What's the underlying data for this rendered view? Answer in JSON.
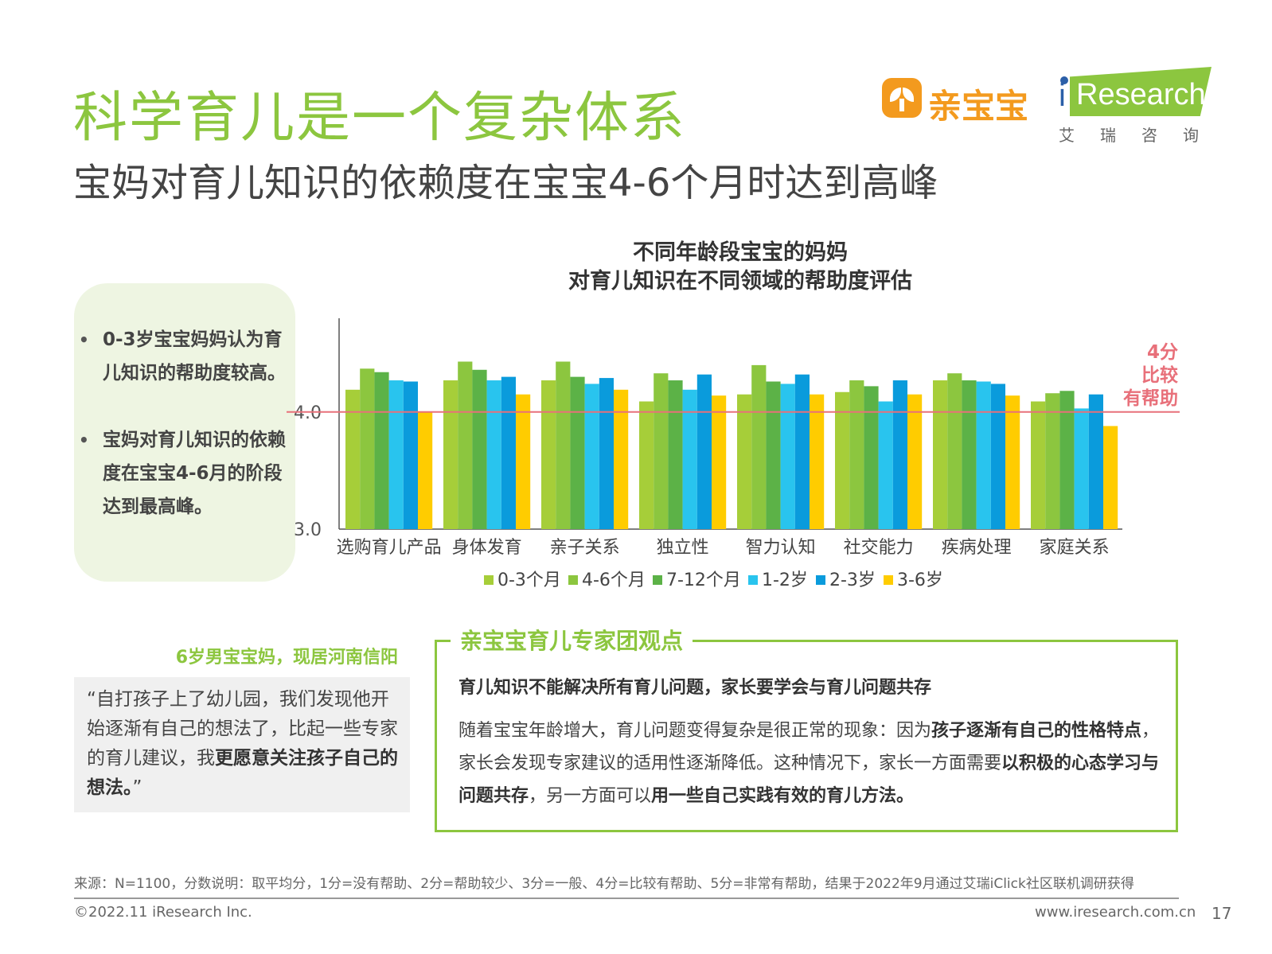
{
  "header": {
    "title": "科学育儿是一个复杂体系",
    "subtitle": "宝妈对育儿知识的依赖度在宝宝4-6个月时达到高峰"
  },
  "logos": {
    "qinbaobao": "亲宝宝",
    "iresearch_en": "Research",
    "iresearch_i": "i",
    "iresearch_cn": "艾瑞咨询"
  },
  "bullets": [
    "0-3岁宝宝妈妈认为育儿知识的帮助度较高。",
    "宝妈对育儿知识的依赖度在宝宝4-6月的阶段达到最高峰。"
  ],
  "chart_title_line1": "不同年龄段宝宝的妈妈",
  "chart_title_line2": "对育儿知识在不同领域的帮助度评估",
  "chart_data": {
    "type": "bar",
    "title": "不同年龄段宝宝的妈妈 对育儿知识在不同领域的帮助度评估",
    "categories": [
      "选购育儿产品",
      "身体发育",
      "亲子关系",
      "独立性",
      "智力认知",
      "社交能力",
      "疾病处理",
      "家庭关系"
    ],
    "series": [
      {
        "name": "0-3个月",
        "color": "#a6ce39",
        "values": [
          4.19,
          4.27,
          4.27,
          4.09,
          4.15,
          4.17,
          4.27,
          4.09
        ]
      },
      {
        "name": "4-6个月",
        "color": "#8cc63f",
        "values": [
          4.37,
          4.43,
          4.43,
          4.33,
          4.4,
          4.27,
          4.33,
          4.16
        ]
      },
      {
        "name": "7-12个月",
        "color": "#5cb247",
        "values": [
          4.34,
          4.36,
          4.3,
          4.27,
          4.26,
          4.22,
          4.27,
          4.18
        ]
      },
      {
        "name": "1-2岁",
        "color": "#29c4ee",
        "values": [
          4.27,
          4.27,
          4.24,
          4.19,
          4.24,
          4.09,
          4.26,
          4.03
        ]
      },
      {
        "name": "2-3岁",
        "color": "#0a9bdc",
        "values": [
          4.26,
          4.3,
          4.29,
          4.32,
          4.32,
          4.27,
          4.24,
          4.15
        ]
      },
      {
        "name": "3-6岁",
        "color": "#ffcc00",
        "values": [
          4.0,
          4.15,
          4.19,
          4.14,
          4.15,
          4.15,
          4.14,
          3.88
        ]
      }
    ],
    "ylim": [
      3.0,
      4.8
    ],
    "yticks": [
      "3.0",
      "4.0"
    ],
    "reference_line": {
      "value": 4.0,
      "color": "#e8707a",
      "label_lines": [
        "4分",
        "比较",
        "有帮助"
      ]
    },
    "legend_position": "bottom"
  },
  "quote": {
    "author": "6岁男宝宝妈，现居河南信阳",
    "text_plain": "“自打孩子上了幼儿园，我们发现他开始逐渐有自己的想法了，比起一些专家的育儿建议，我",
    "text_bold": "更愿意关注孩子自己的想法。",
    "text_end": "”"
  },
  "expert": {
    "title": "亲宝宝育儿专家团观点",
    "heading": "育儿知识不能解决所有育儿问题，家长要学会与育儿问题共存",
    "p1": "随着宝宝年龄增大，育儿问题变得复杂是很正常的现象：因为",
    "b1": "孩子逐渐有自己的性格特点",
    "p2": "，家长会发现专家建议的适用性逐渐降低。这种情况下，家长一方面需要",
    "b2": "以积极的心态学习与问题共存",
    "p3": "，另一方面可以",
    "b3": "用一些自己实践有效的育儿方法。"
  },
  "footer": {
    "source": "来源：N=1100，分数说明：取平均分，1分=没有帮助、2分=帮助较少、3分=一般、4分=比较有帮助、5分=非常有帮助，结果于2022年9月通过艾瑞iClick社区联机调研获得",
    "copyright": "©2022.11 iResearch Inc.",
    "website": "www.iresearch.com.cn",
    "page": "17"
  }
}
